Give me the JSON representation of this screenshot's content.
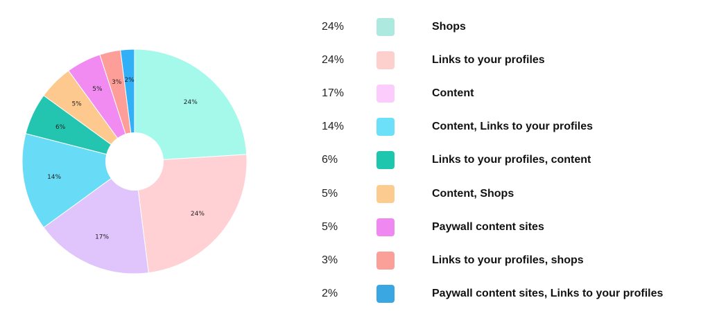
{
  "chart_data": {
    "type": "pie",
    "donut": true,
    "legend_position": "right",
    "slices": [
      {
        "label": "Shops",
        "value": 24,
        "value_text": "24%",
        "color": "#a4f9eb",
        "legend_color": "#ade9df"
      },
      {
        "label": "Links to your profiles",
        "value": 24,
        "value_text": "24%",
        "color": "#ffd1d4",
        "legend_color": "#fdcfcd"
      },
      {
        "label": "Content",
        "value": 17,
        "value_text": "17%",
        "color": "#e0c4fc",
        "legend_color": "#fbccfc"
      },
      {
        "label": "Content, Links to your profiles",
        "value": 14,
        "value_text": "14%",
        "color": "#68dbf6",
        "legend_color": "#6de0f9"
      },
      {
        "label": "Links to your profiles, content",
        "value": 6,
        "value_text": "6%",
        "color": "#24c5b0",
        "legend_color": "#1dc6ad"
      },
      {
        "label": "Content, Shops",
        "value": 5,
        "value_text": "5%",
        "color": "#fec98f",
        "legend_color": "#fccb90"
      },
      {
        "label": "Paywall content sites",
        "value": 5,
        "value_text": "5%",
        "color": "#f18bf2",
        "legend_color": "#f088f1"
      },
      {
        "label": "Links to your profiles, shops",
        "value": 3,
        "value_text": "3%",
        "color": "#fe9e98",
        "legend_color": "#fb9f99"
      },
      {
        "label": "Paywall content sites, Links to your profiles",
        "value": 2,
        "value_text": "2%",
        "color": "#31b0f8",
        "legend_color": "#3aa6e2"
      }
    ]
  }
}
